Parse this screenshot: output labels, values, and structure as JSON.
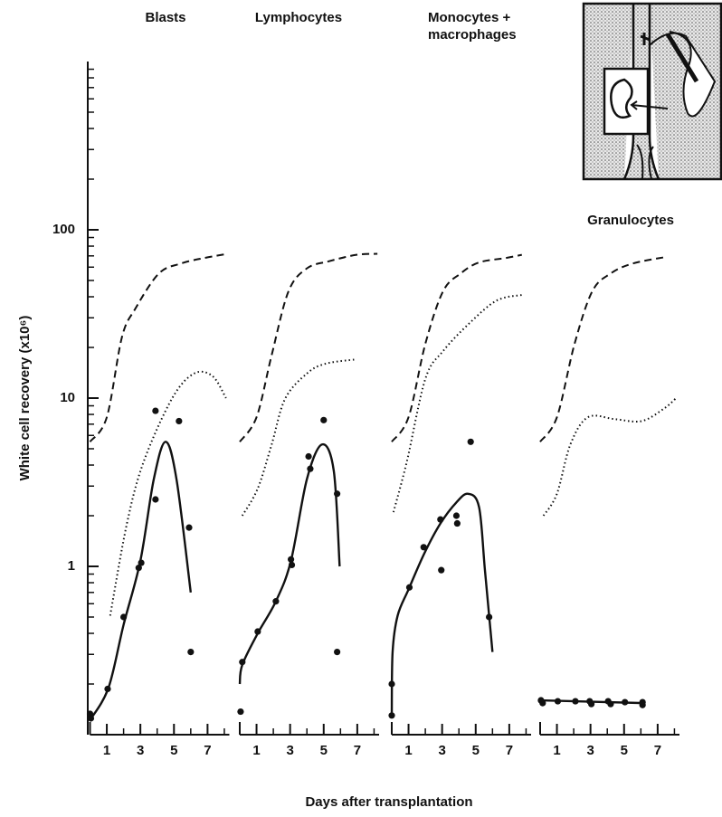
{
  "xlabel": "Days after transplantation",
  "chart_data": [
    {
      "type": "scatter",
      "title": "Blasts",
      "ylabel": "White cell recovery (x10⁶)",
      "log": true,
      "ylim": [
        0.1,
        1000
      ],
      "yticks": [
        1,
        10,
        100
      ],
      "xlim": [
        0,
        8.3
      ],
      "xticks": [
        1,
        3,
        5,
        7
      ],
      "series": [
        {
          "style": "points",
          "color": "#111111",
          "x": [
            0,
            0.05,
            1.05,
            2,
            2.9,
            3.05,
            3.9,
            3.9,
            5.3,
            5.9,
            6
          ],
          "values": [
            0.133,
            0.125,
            0.187,
            0.5,
            0.98,
            1.05,
            8.4,
            2.5,
            7.3,
            1.7,
            0.31
          ]
        },
        {
          "style": "solid",
          "color": "#111111",
          "x": [
            0,
            1.1,
            2,
            3,
            3.8,
            4.5,
            5.15,
            6
          ],
          "values": [
            0.122,
            0.19,
            0.45,
            1.08,
            3.3,
            5.5,
            3.3,
            0.7
          ]
        },
        {
          "style": "dashed",
          "color": "#111111",
          "x": [
            0,
            1,
            1.9,
            2.7,
            4.1,
            5.4,
            6.8,
            8.2
          ],
          "values": [
            5.5,
            7.7,
            23,
            34,
            55,
            63,
            68,
            72
          ]
        },
        {
          "style": "dotted",
          "color": "#111111",
          "x": [
            1.2,
            2.2,
            3.2,
            4.9,
            6.2,
            7.3,
            8.1
          ],
          "values": [
            0.51,
            1.8,
            4.2,
            10,
            14,
            13.5,
            10
          ]
        }
      ]
    },
    {
      "type": "scatter",
      "title": "Lymphocytes",
      "log": true,
      "ylim": [
        0.1,
        1000
      ],
      "xlim": [
        0,
        8.3
      ],
      "xticks": [
        1,
        3,
        5,
        7
      ],
      "series": [
        {
          "style": "points",
          "color": "#111111",
          "x": [
            0.05,
            0.15,
            1.07,
            2.15,
            3.05,
            3.1,
            4.1,
            4.2,
            5,
            5.8,
            5.8
          ],
          "values": [
            0.137,
            0.27,
            0.41,
            0.62,
            1.1,
            1.02,
            4.5,
            3.8,
            7.4,
            2.7,
            0.31
          ]
        },
        {
          "style": "solid",
          "color": "#111111",
          "x": [
            0,
            0.15,
            1.07,
            2.15,
            3.05,
            4,
            4.9,
            5.6,
            5.95
          ],
          "values": [
            0.2,
            0.26,
            0.4,
            0.62,
            1.08,
            3.3,
            5.3,
            3.7,
            1
          ]
        },
        {
          "style": "dashed",
          "color": "#111111",
          "x": [
            0,
            1,
            1.9,
            2.9,
            4,
            5.3,
            6.95,
            8.2
          ],
          "values": [
            5.5,
            7.7,
            18,
            43,
            59,
            65,
            71,
            72
          ]
        },
        {
          "style": "dotted",
          "color": "#111111",
          "x": [
            0.15,
            1.07,
            1.9,
            2.7,
            4,
            5.1,
            6.95
          ],
          "values": [
            2,
            2.9,
            5.3,
            9.9,
            14,
            16,
            17
          ]
        }
      ]
    },
    {
      "type": "scatter",
      "title": "Monocytes + macrophages",
      "log": true,
      "ylim": [
        0.1,
        1000
      ],
      "xlim": [
        0,
        8.3
      ],
      "xticks": [
        1,
        3,
        5,
        7
      ],
      "series": [
        {
          "style": "points",
          "color": "#111111",
          "x": [
            0,
            0,
            1.05,
            1.9,
            2.9,
            2.95,
            3.85,
            3.9,
            4.7,
            5.8
          ],
          "values": [
            0.2,
            0.13,
            0.75,
            1.3,
            1.9,
            0.95,
            2,
            1.8,
            5.5,
            0.5
          ]
        },
        {
          "style": "solid",
          "color": "#111111",
          "x": [
            0,
            0.05,
            0.35,
            1,
            1.95,
            2.9,
            3.85,
            4.55,
            5.2,
            5.55,
            6
          ],
          "values": [
            0.13,
            0.31,
            0.51,
            0.73,
            1.2,
            1.8,
            2.4,
            2.7,
            2.25,
            0.95,
            0.31
          ]
        },
        {
          "style": "dashed",
          "color": "#111111",
          "x": [
            0,
            1,
            2,
            3.05,
            4.1,
            5.2,
            6.8,
            7.75
          ],
          "values": [
            5.5,
            7.7,
            21,
            43,
            55,
            64,
            68,
            71
          ]
        },
        {
          "style": "dotted",
          "color": "#111111",
          "x": [
            0.1,
            0.9,
            2,
            3.05,
            4.65,
            6.25,
            7.75
          ],
          "values": [
            2.1,
            4.2,
            13,
            19,
            28,
            38,
            41
          ]
        }
      ]
    },
    {
      "type": "scatter",
      "title": "Granulocytes",
      "log": true,
      "ylim": [
        0.1,
        1000
      ],
      "xlim": [
        0,
        8.3
      ],
      "xticks": [
        1,
        3,
        5,
        7
      ],
      "series": [
        {
          "style": "points",
          "color": "#111111",
          "x": [
            0.05,
            0.15,
            1.05,
            2.1,
            2.95,
            3.05,
            4.05,
            4.2,
            5.05,
            6.1,
            6.1
          ],
          "values": [
            0.16,
            0.154,
            0.158,
            0.158,
            0.158,
            0.152,
            0.158,
            0.152,
            0.156,
            0.156,
            0.15
          ]
        },
        {
          "style": "solid",
          "color": "#111111",
          "x": [
            0,
            6.2
          ],
          "values": [
            0.16,
            0.154
          ]
        },
        {
          "style": "dashed",
          "color": "#111111",
          "x": [
            0,
            1,
            2.05,
            3.1,
            4.2,
            5.5,
            7.5
          ],
          "values": [
            5.5,
            7.7,
            21,
            43,
            55,
            63,
            69
          ]
        },
        {
          "style": "dotted",
          "color": "#111111",
          "x": [
            0.2,
            1,
            1.8,
            2.85,
            4.45,
            6.05,
            7.4,
            8.1
          ],
          "values": [
            2,
            2.7,
            5.3,
            7.7,
            7.5,
            7.3,
            8.7,
            10
          ]
        }
      ]
    }
  ]
}
